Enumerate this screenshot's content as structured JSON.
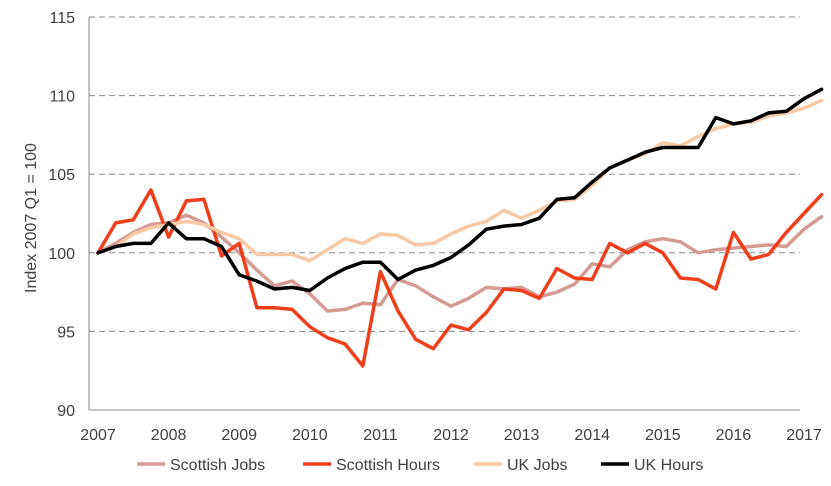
{
  "chart_data": {
    "type": "line",
    "title": "",
    "xlabel": "",
    "ylabel": "Index 2007 Q1 = 100",
    "ylim": [
      90,
      115
    ],
    "yticks": [
      90,
      95,
      100,
      105,
      110,
      115
    ],
    "xticks": [
      "2007",
      "2008",
      "2009",
      "2010",
      "2011",
      "2012",
      "2013",
      "2014",
      "2015",
      "2016",
      "2017"
    ],
    "grid": "horizontal dashed",
    "legend_position": "bottom",
    "x": [
      "2007 Q1",
      "2007 Q2",
      "2007 Q3",
      "2007 Q4",
      "2008 Q1",
      "2008 Q2",
      "2008 Q3",
      "2008 Q4",
      "2009 Q1",
      "2009 Q2",
      "2009 Q3",
      "2009 Q4",
      "2010 Q1",
      "2010 Q2",
      "2010 Q3",
      "2010 Q4",
      "2011 Q1",
      "2011 Q2",
      "2011 Q3",
      "2011 Q4",
      "2012 Q1",
      "2012 Q2",
      "2012 Q3",
      "2012 Q4",
      "2013 Q1",
      "2013 Q2",
      "2013 Q3",
      "2013 Q4",
      "2014 Q1",
      "2014 Q2",
      "2014 Q3",
      "2014 Q4",
      "2015 Q1",
      "2015 Q2",
      "2015 Q3",
      "2015 Q4",
      "2016 Q1",
      "2016 Q2",
      "2016 Q3",
      "2016 Q4",
      "2017 Q1",
      "2017 Q2"
    ],
    "series": [
      {
        "name": "Scottish Jobs",
        "color": "#D69A94",
        "values": [
          100.0,
          100.6,
          101.3,
          101.8,
          101.9,
          102.4,
          101.9,
          101.0,
          100.0,
          98.9,
          97.9,
          98.2,
          97.4,
          96.3,
          96.4,
          96.8,
          96.7,
          98.3,
          97.9,
          97.2,
          96.6,
          97.1,
          97.8,
          97.7,
          97.8,
          97.2,
          97.5,
          98.0,
          99.3,
          99.1,
          100.2,
          100.7,
          100.9,
          100.7,
          100.0,
          100.2,
          100.3,
          100.4,
          100.5,
          100.4,
          101.5,
          102.3
        ]
      },
      {
        "name": "Scottish Hours",
        "color": "#EF3E1A",
        "values": [
          100.0,
          101.9,
          102.1,
          104.0,
          101.0,
          103.3,
          103.4,
          99.8,
          100.6,
          96.5,
          96.5,
          96.4,
          95.3,
          94.6,
          94.2,
          92.8,
          98.8,
          96.3,
          94.5,
          93.9,
          95.4,
          95.1,
          96.2,
          97.7,
          97.6,
          97.1,
          99.0,
          98.4,
          98.3,
          100.6,
          100.0,
          100.6,
          100.0,
          98.4,
          98.3,
          97.7,
          101.3,
          99.6,
          99.9,
          101.3,
          102.5,
          103.7
        ]
      },
      {
        "name": "UK Jobs",
        "color": "#F9C9A4",
        "values": [
          100.0,
          100.4,
          101.2,
          101.6,
          101.8,
          102.0,
          101.8,
          101.3,
          100.9,
          99.9,
          99.9,
          99.9,
          99.5,
          100.2,
          100.9,
          100.6,
          101.2,
          101.1,
          100.5,
          100.6,
          101.2,
          101.7,
          102.0,
          102.7,
          102.2,
          102.7,
          103.3,
          103.4,
          104.3,
          105.4,
          105.9,
          106.3,
          107.0,
          106.8,
          107.4,
          107.9,
          108.2,
          108.3,
          108.7,
          108.9,
          109.2,
          109.7
        ]
      },
      {
        "name": "UK Hours",
        "color": "#000000",
        "values": [
          100.0,
          100.4,
          100.6,
          100.6,
          101.9,
          100.9,
          100.9,
          100.4,
          98.6,
          98.2,
          97.7,
          97.8,
          97.6,
          98.4,
          99.0,
          99.4,
          99.4,
          98.3,
          98.9,
          99.2,
          99.7,
          100.5,
          101.5,
          101.7,
          101.8,
          102.2,
          103.4,
          103.5,
          104.5,
          105.4,
          105.9,
          106.4,
          106.7,
          106.7,
          106.7,
          108.6,
          108.2,
          108.4,
          108.9,
          109.0,
          109.8,
          110.4
        ]
      }
    ]
  }
}
